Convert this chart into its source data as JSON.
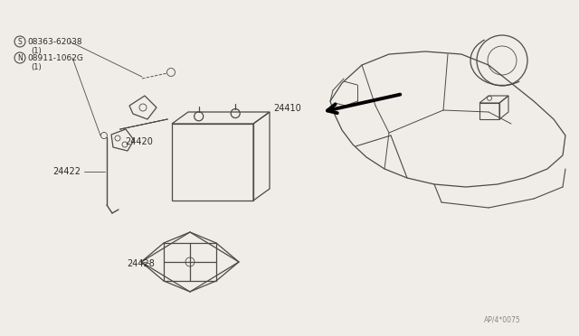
{
  "bg_color": "#f0ede8",
  "line_color": "#4a4a4a",
  "text_color": "#2a2a2a",
  "fig_width": 6.4,
  "fig_height": 3.72,
  "dpi": 100,
  "labels": {
    "s_label": "S 08363-62038",
    "s_sub": "(1)",
    "n_label": "N 08911-1062G",
    "n_sub": "(1)",
    "part_24410": "24410",
    "part_24420": "24420",
    "part_24422": "24422",
    "part_24428": "24428",
    "footer": "AP/4*0075"
  }
}
